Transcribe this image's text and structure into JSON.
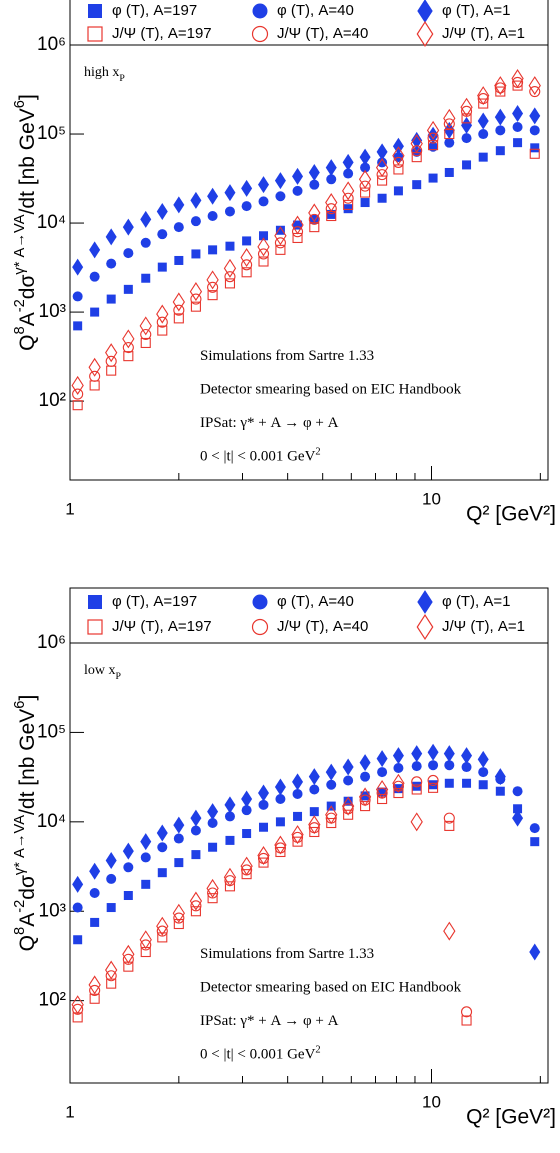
{
  "chart_data": [
    {
      "type": "scatter",
      "log_x": true,
      "log_y": true,
      "xlim": [
        1,
        21
      ],
      "ylim": [
        13,
        1000000
      ],
      "xticks": [
        1,
        10
      ],
      "xminor": [
        2,
        3,
        4,
        5,
        6,
        7,
        8,
        9,
        20
      ],
      "yticks": [
        {
          "value": 100,
          "label": "10²"
        },
        {
          "value": 1000,
          "label": "10³"
        },
        {
          "value": 10000,
          "label": "10⁴"
        },
        {
          "value": 100000,
          "label": "10⁵"
        },
        {
          "value": 1000000,
          "label": "10⁶"
        }
      ],
      "xlabel": "Q² [GeV²]",
      "ylabel": [
        {
          "text": "Q"
        },
        {
          "text": "8",
          "sup": true
        },
        {
          "text": "A"
        },
        {
          "text": "-2",
          "sup": true
        },
        {
          "text": "dσ"
        },
        {
          "text": "γ* A→VA",
          "sup": true
        },
        {
          "text": "/dt  [nb GeV"
        },
        {
          "text": "6",
          "sup": true
        },
        {
          "text": "]"
        }
      ],
      "tag": [
        {
          "text": "high x"
        },
        {
          "text": "P",
          "sub": true
        }
      ],
      "notes": [
        [
          {
            "text": "Simulations from Sartre 1.33"
          }
        ],
        [
          {
            "text": "Detector smearing based on EIC Handbook"
          }
        ],
        [
          {
            "text": "IPSat:  γ* + A  → φ + A"
          }
        ],
        [
          {
            "text": "0 < |t| < 0.001 GeV"
          },
          {
            "text": "2",
            "sup": true
          }
        ]
      ],
      "x": [
        1.05,
        1.17,
        1.3,
        1.45,
        1.62,
        1.8,
        2.0,
        2.23,
        2.48,
        2.77,
        3.08,
        3.43,
        3.82,
        4.26,
        4.74,
        5.28,
        5.88,
        6.55,
        7.3,
        8.1,
        9.1,
        10.1,
        11.2,
        12.5,
        13.9,
        15.5,
        17.3,
        19.3
      ],
      "series": [
        {
          "name": "φ (T), A=197",
          "color": "#1f3fe6",
          "marker": "square",
          "filled": true,
          "values": [
            700,
            1000,
            1400,
            1800,
            2400,
            3200,
            3800,
            4500,
            5000,
            5500,
            6300,
            7200,
            8300,
            9500,
            11000,
            12500,
            14500,
            17000,
            19000,
            23000,
            27000,
            32000,
            37000,
            45000,
            55000,
            65000,
            80000,
            70000
          ]
        },
        {
          "name": "φ (T), A=40",
          "color": "#1f3fe6",
          "marker": "circle",
          "filled": true,
          "values": [
            1500,
            2500,
            3500,
            4600,
            6000,
            7500,
            9000,
            10500,
            12000,
            13500,
            15500,
            17500,
            20000,
            23000,
            27000,
            31000,
            36000,
            42000,
            48000,
            55000,
            63000,
            72000,
            80000,
            90000,
            100000,
            110000,
            120000,
            110000
          ]
        },
        {
          "name": "φ (T), A=1",
          "color": "#1f3fe6",
          "marker": "diamond",
          "filled": true,
          "values": [
            3200,
            5000,
            7000,
            9000,
            11000,
            13500,
            16000,
            18000,
            20000,
            22000,
            24500,
            27000,
            30000,
            33500,
            37000,
            42000,
            48000,
            55000,
            63000,
            73000,
            85000,
            97000,
            110000,
            125000,
            140000,
            155000,
            170000,
            160000
          ]
        },
        {
          "name": "J/Ψ (T), A=197",
          "color": "#e8362e",
          "marker": "square",
          "filled": false,
          "values": [
            90,
            150,
            220,
            320,
            450,
            620,
            850,
            1150,
            1550,
            2100,
            2800,
            3700,
            5000,
            6800,
            9000,
            12000,
            16000,
            22000,
            30000,
            40000,
            55000,
            75000,
            100000,
            150000,
            220000,
            300000,
            350000,
            60000
          ]
        },
        {
          "name": "J/Ψ (T), A=40",
          "color": "#e8362e",
          "marker": "circle",
          "filled": false,
          "values": [
            120,
            190,
            280,
            400,
            560,
            770,
            1050,
            1400,
            1900,
            2500,
            3400,
            4500,
            6000,
            8000,
            11000,
            14500,
            19000,
            26000,
            35000,
            48000,
            65000,
            90000,
            130000,
            180000,
            250000,
            330000,
            380000,
            300000
          ]
        },
        {
          "name": "J/Ψ (T), A=1",
          "color": "#e8362e",
          "marker": "diamond",
          "filled": false,
          "values": [
            150,
            240,
            350,
            500,
            700,
            950,
            1300,
            1700,
            2300,
            3100,
            4100,
            5400,
            7200,
            9500,
            13000,
            17000,
            23000,
            31000,
            42000,
            57000,
            78000,
            110000,
            150000,
            200000,
            270000,
            350000,
            420000,
            350000
          ]
        }
      ]
    },
    {
      "type": "scatter",
      "log_x": true,
      "log_y": true,
      "xlim": [
        1,
        21
      ],
      "ylim": [
        12,
        1000000
      ],
      "xticks": [
        1,
        10
      ],
      "xminor": [
        2,
        3,
        4,
        5,
        6,
        7,
        8,
        9,
        20
      ],
      "yticks": [
        {
          "value": 100,
          "label": "10²"
        },
        {
          "value": 1000,
          "label": "10³"
        },
        {
          "value": 10000,
          "label": "10⁴"
        },
        {
          "value": 100000,
          "label": "10⁵"
        },
        {
          "value": 1000000,
          "label": "10⁶"
        }
      ],
      "xlabel": "Q² [GeV²]",
      "ylabel": [
        {
          "text": "Q"
        },
        {
          "text": "8",
          "sup": true
        },
        {
          "text": "A"
        },
        {
          "text": "-2",
          "sup": true
        },
        {
          "text": "dσ"
        },
        {
          "text": "γ* A→VA",
          "sup": true
        },
        {
          "text": "/dt  [nb GeV"
        },
        {
          "text": "6",
          "sup": true
        },
        {
          "text": "]"
        }
      ],
      "tag": [
        {
          "text": "low x"
        },
        {
          "text": "P",
          "sub": true
        }
      ],
      "notes": [
        [
          {
            "text": "Simulations from Sartre 1.33"
          }
        ],
        [
          {
            "text": "Detector smearing based on EIC Handbook"
          }
        ],
        [
          {
            "text": "IPSat:  γ* + A  → φ + A"
          }
        ],
        [
          {
            "text": "0 < |t| < 0.001 GeV"
          },
          {
            "text": "2",
            "sup": true
          }
        ]
      ],
      "x": [
        1.05,
        1.17,
        1.3,
        1.45,
        1.62,
        1.8,
        2.0,
        2.23,
        2.48,
        2.77,
        3.08,
        3.43,
        3.82,
        4.26,
        4.74,
        5.28,
        5.88,
        6.55,
        7.3,
        8.1,
        9.1,
        10.1,
        11.2,
        12.5,
        13.9,
        15.5,
        17.3,
        19.3
      ],
      "series": [
        {
          "name": "φ (T), A=197",
          "color": "#1f3fe6",
          "marker": "square",
          "filled": true,
          "values": [
            480,
            750,
            1100,
            1500,
            2000,
            2700,
            3500,
            4300,
            5200,
            6200,
            7400,
            8700,
            10000,
            11500,
            13000,
            15000,
            17000,
            19500,
            21500,
            23500,
            25000,
            26000,
            27000,
            27000,
            26000,
            22000,
            14000,
            6000
          ]
        },
        {
          "name": "φ (T), A=40",
          "color": "#1f3fe6",
          "marker": "circle",
          "filled": true,
          "values": [
            1100,
            1600,
            2300,
            3100,
            4000,
            5200,
            6500,
            8000,
            9700,
            11500,
            13500,
            15500,
            18000,
            20500,
            23000,
            26000,
            29000,
            32000,
            36000,
            40000,
            42000,
            43000,
            43000,
            41000,
            36000,
            30000,
            22000,
            8500
          ]
        },
        {
          "name": "φ (T), A=1",
          "color": "#1f3fe6",
          "marker": "diamond",
          "filled": true,
          "values": [
            2000,
            2800,
            3700,
            4700,
            6000,
            7500,
            9200,
            11000,
            13000,
            15500,
            18000,
            21000,
            24500,
            28000,
            32000,
            36000,
            41000,
            46000,
            51000,
            55000,
            58000,
            60000,
            58000,
            55000,
            50000,
            32000,
            11000,
            350
          ]
        },
        {
          "name": "J/Ψ (T), A=197",
          "color": "#e8362e",
          "marker": "square",
          "filled": false,
          "values": [
            65,
            105,
            155,
            240,
            350,
            510,
            720,
            1000,
            1400,
            1900,
            2600,
            3500,
            4600,
            6000,
            7700,
            9700,
            12000,
            15000,
            18000,
            21000,
            23000,
            24000,
            9000,
            60,
            null,
            null,
            null,
            null
          ]
        },
        {
          "name": "J/Ψ (T), A=40",
          "color": "#e8362e",
          "marker": "circle",
          "filled": false,
          "values": [
            80,
            130,
            190,
            290,
            420,
            600,
            840,
            1150,
            1600,
            2200,
            2900,
            3900,
            5100,
            6700,
            8600,
            11000,
            14000,
            17500,
            21000,
            25000,
            28000,
            29000,
            11000,
            75,
            null,
            null,
            null,
            null
          ]
        },
        {
          "name": "J/Ψ (T), A=1",
          "color": "#e8362e",
          "marker": "diamond",
          "filled": false,
          "values": [
            90,
            150,
            220,
            330,
            480,
            680,
            950,
            1300,
            1800,
            2400,
            3200,
            4200,
            5500,
            7200,
            9300,
            12000,
            15000,
            19000,
            23000,
            27000,
            10000,
            null,
            600,
            null,
            null,
            null,
            null,
            null
          ]
        }
      ]
    }
  ]
}
